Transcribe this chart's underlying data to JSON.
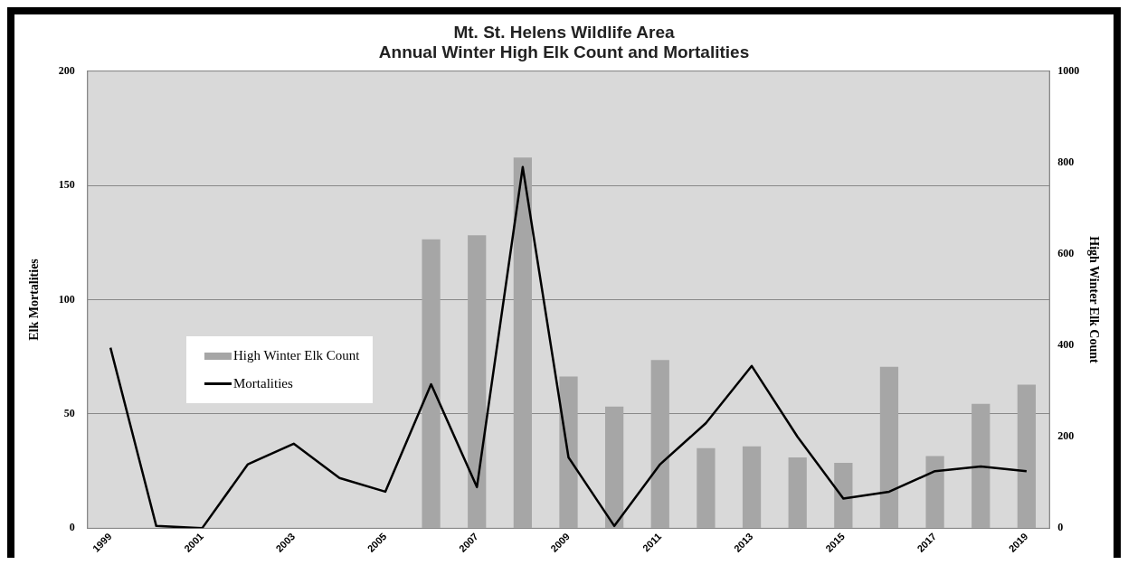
{
  "chart_data": {
    "type": "bar",
    "title": "Mt. St. Helens Wildlife Area\nAnnual Winter High Elk Count and Mortalities",
    "ylabel": "Elk Mortalities",
    "y2label": "High Winter Elk Count",
    "categories": [
      "1999",
      null,
      "2001",
      null,
      "2003",
      null,
      "2005",
      null,
      "2007",
      null,
      "2009",
      null,
      "2011",
      null,
      "2013",
      null,
      "2015",
      null,
      "2017",
      null,
      "2019"
    ],
    "series": [
      {
        "name": "High Winter Elk Count",
        "axis": "y2",
        "color": "#a6a6a6",
        "values": [
          null,
          null,
          null,
          null,
          null,
          null,
          null,
          632,
          641,
          811,
          332,
          266,
          368,
          175,
          179,
          155,
          143,
          353,
          158,
          272,
          314
        ]
      },
      {
        "name": "Mortalities",
        "type": "line",
        "axis": "y",
        "color": "#000000",
        "values": [
          79,
          1,
          0,
          28,
          37,
          22,
          16,
          63,
          18,
          158,
          31,
          1,
          28,
          46,
          71,
          40,
          13,
          16,
          25,
          27,
          25
        ]
      }
    ],
    "ylim": [
      0,
      200
    ],
    "yticks": [
      0,
      50,
      100,
      150,
      200
    ],
    "y2lim": [
      0,
      1000
    ],
    "y2ticks": [
      0,
      200,
      400,
      600,
      800,
      1000
    ],
    "grid": "y",
    "legend": "left",
    "marker": "none",
    "line_style": "solid"
  }
}
